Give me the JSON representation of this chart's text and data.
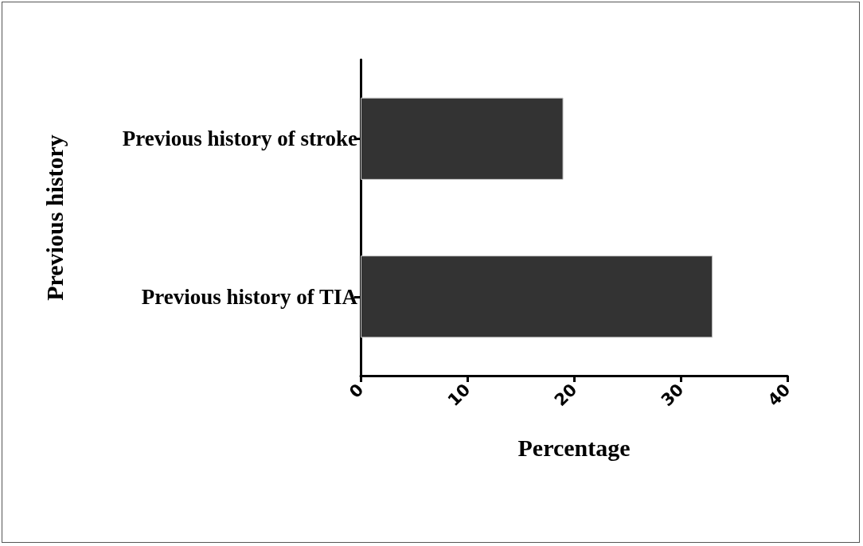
{
  "chart_data": {
    "type": "bar",
    "orientation": "horizontal",
    "xlabel": "Percentage",
    "ylabel": "Previous history",
    "categories": [
      "Previous history of stroke",
      "Previous history of TIA"
    ],
    "values": [
      19,
      33
    ],
    "color": "#333333",
    "xlim": [
      0,
      40
    ],
    "xticks": [
      0,
      10,
      20,
      30,
      40
    ]
  }
}
